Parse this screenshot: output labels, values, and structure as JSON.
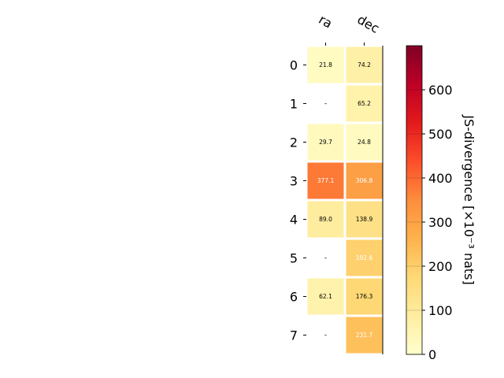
{
  "chart_data": {
    "type": "heatmap",
    "columns": [
      "ra",
      "dec"
    ],
    "rows": [
      "0",
      "1",
      "2",
      "3",
      "4",
      "5",
      "6",
      "7"
    ],
    "values": [
      [
        21.8,
        74.2
      ],
      [
        null,
        65.2
      ],
      [
        29.7,
        24.8
      ],
      [
        377.1,
        306.8
      ],
      [
        89.0,
        138.9
      ],
      [
        null,
        192.6
      ],
      [
        62.1,
        176.3
      ],
      [
        null,
        231.7
      ]
    ],
    "cell_labels": [
      [
        "21.8",
        "74.2"
      ],
      [
        "–",
        "65.2"
      ],
      [
        "29.7",
        "24.8"
      ],
      [
        "377.1",
        "306.8"
      ],
      [
        "89.0",
        "138.9"
      ],
      [
        "–",
        "192.6"
      ],
      [
        "62.1",
        "176.3"
      ],
      [
        "–",
        "231.7"
      ]
    ],
    "colorbar": {
      "label": "JS-divergence [×10⁻³ nats]",
      "range": [
        0,
        700
      ],
      "ticks": [
        0,
        100,
        200,
        300,
        400,
        500,
        600
      ],
      "colormap": "YlOrRd"
    },
    "grid": false
  }
}
